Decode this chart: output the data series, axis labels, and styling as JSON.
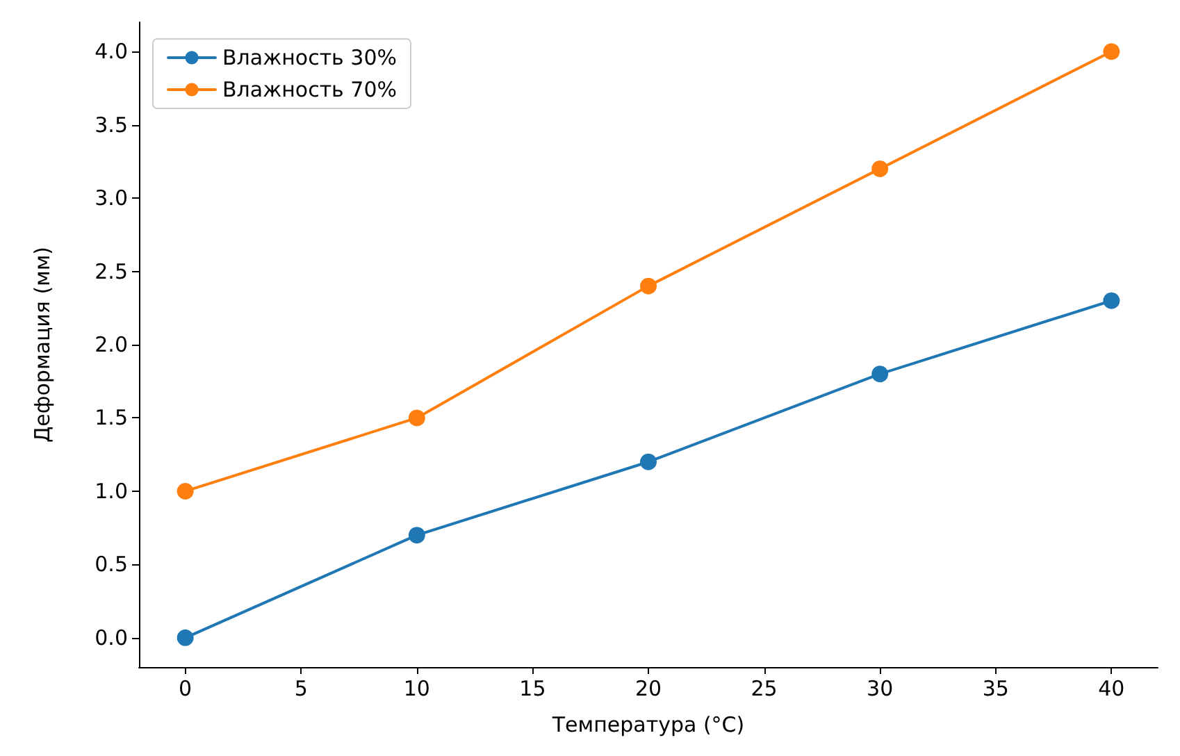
{
  "chart_data": {
    "type": "line",
    "xlabel": "Температура (°C)",
    "ylabel": "Деформация (мм)",
    "x": [
      0,
      10,
      20,
      30,
      40
    ],
    "series": [
      {
        "name": "Влажность 30%",
        "color": "#1f77b4",
        "values": [
          0,
          0.7,
          1.2,
          1.8,
          2.3
        ]
      },
      {
        "name": "Влажность 70%",
        "color": "#ff7f0e",
        "values": [
          1.0,
          1.5,
          2.4,
          3.2,
          4.0
        ]
      }
    ],
    "xlim": [
      -2,
      42
    ],
    "xticks": [
      0,
      5,
      10,
      15,
      20,
      25,
      30,
      35,
      40
    ],
    "ylim": [
      -0.2,
      4.2
    ],
    "yticks": [
      {
        "value": 0,
        "label": "0.0"
      },
      {
        "value": 0.5,
        "label": "0.5"
      },
      {
        "value": 1,
        "label": "1.0"
      },
      {
        "value": 1.5,
        "label": "1.5"
      },
      {
        "value": 2,
        "label": "2.0"
      },
      {
        "value": 2.5,
        "label": "2.5"
      },
      {
        "value": 3,
        "label": "3.0"
      },
      {
        "value": 3.5,
        "label": "3.5"
      },
      {
        "value": 4,
        "label": "4.0"
      }
    ],
    "grid": false,
    "legend": "top left",
    "marker": "circle",
    "line_style": "solid"
  }
}
